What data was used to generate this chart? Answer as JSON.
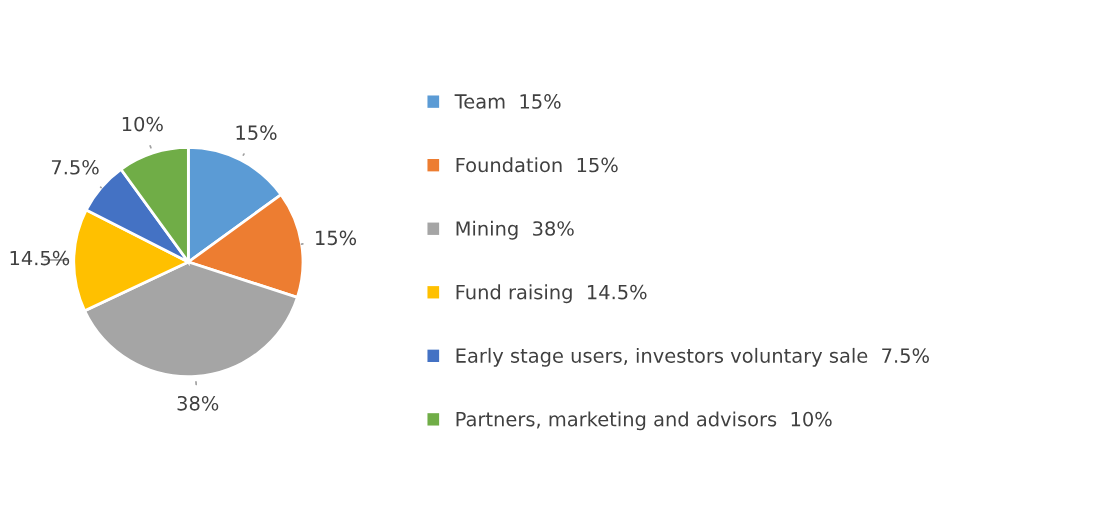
{
  "chart_data": {
    "type": "pie",
    "categories": [
      "Team",
      "Foundation",
      "Mining",
      "Fund raising",
      "Early stage users, investors voluntary sale",
      "Partners, marketing and advisors"
    ],
    "values": [
      15,
      15,
      38,
      14.5,
      7.5,
      10
    ],
    "value_labels": [
      "15%",
      "15%",
      "38%",
      "14.5%",
      "7.5%",
      "10%"
    ],
    "colors": [
      "#5b9bd5",
      "#ed7d31",
      "#a5a5a5",
      "#ffc000",
      "#4472c4",
      "#70ad47"
    ],
    "legend": "right"
  }
}
